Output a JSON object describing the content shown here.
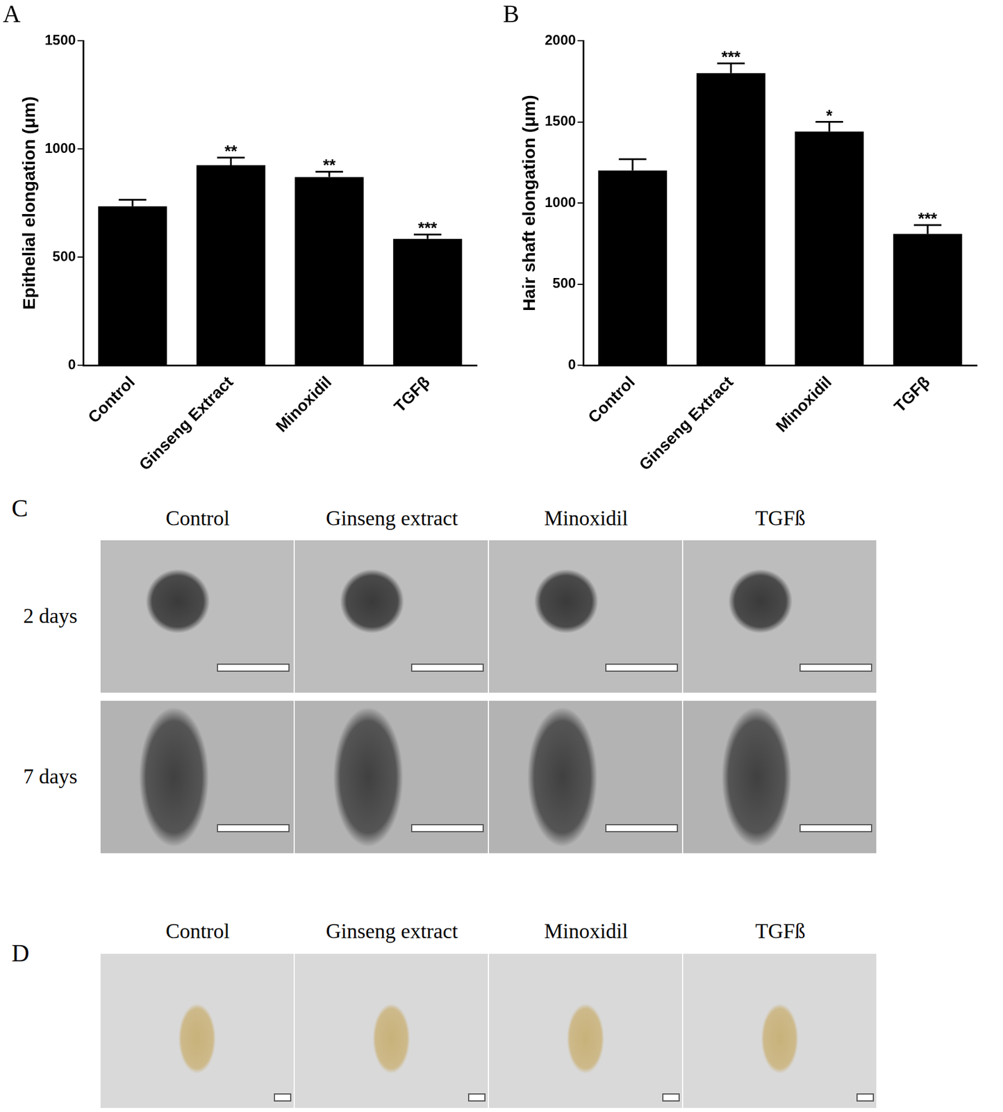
{
  "chart_data": [
    {
      "panel": "A",
      "type": "bar",
      "categories": [
        "Control",
        "Ginseng Extract",
        "Minoxidil",
        "TGFβ"
      ],
      "values": [
        735,
        925,
        870,
        585
      ],
      "errors": [
        30,
        35,
        25,
        20
      ],
      "significance": [
        null,
        "**",
        "**",
        "***"
      ],
      "y_label": "Epithelial elongation (μm)",
      "color": "#000000",
      "ylim": [
        0,
        1500
      ],
      "yticks": [
        0,
        500,
        1000,
        1500
      ],
      "grid": false
    },
    {
      "panel": "B",
      "type": "bar",
      "categories": [
        "Control",
        "Ginseng Extract",
        "Minoxidil",
        "TGFβ"
      ],
      "values": [
        1200,
        1800,
        1440,
        810
      ],
      "errors": [
        70,
        60,
        60,
        55
      ],
      "significance": [
        null,
        "***",
        "*",
        "***"
      ],
      "y_label": "Hair shaft elongation (μm)",
      "color": "#000000",
      "ylim": [
        0,
        2000
      ],
      "yticks": [
        0,
        500,
        1000,
        1500,
        2000
      ],
      "grid": false
    }
  ],
  "image_panels": [
    {
      "panel": "C",
      "columns": [
        "Control",
        "Ginseng extract",
        "Minoxidil",
        "TGFß"
      ],
      "rows": [
        "2 days",
        "7 days"
      ]
    },
    {
      "panel": "D",
      "columns": [
        "Control",
        "Ginseng extract",
        "Minoxidil",
        "TGFß"
      ]
    }
  ]
}
